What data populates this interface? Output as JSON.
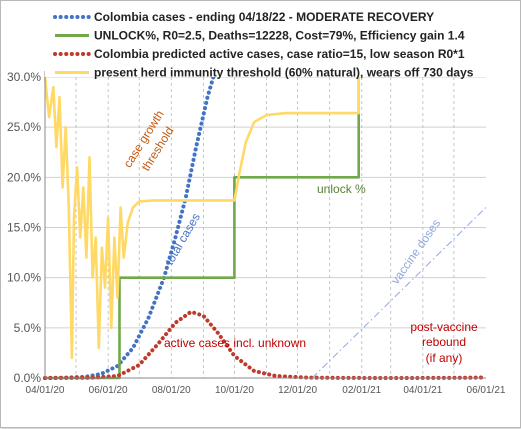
{
  "chart_data": {
    "type": "line",
    "x_axis": {
      "range": [
        "2020-04-01",
        "2021-06-01"
      ],
      "tick_labels": [
        "04/01/20",
        "06/01/20",
        "08/01/20",
        "10/01/20",
        "12/01/20",
        "02/01/21",
        "04/01/21",
        "06/01/21"
      ]
    },
    "y_axis": {
      "range": [
        0,
        0.3
      ],
      "tick_labels": [
        "0.0%",
        "5.0%",
        "10.0%",
        "15.0%",
        "20.0%",
        "25.0%",
        "30.0%"
      ]
    },
    "grid": {
      "horizontal": "solid",
      "vertical": "dashed"
    },
    "legend": {
      "position": "top",
      "entries": [
        {
          "label": "Colombia cases - ending 04/18/22 - MODERATE RECOVERY",
          "color": "#4472c4",
          "style": "dotted"
        },
        {
          "label": "UNLOCK%, R0=2.5,  Deaths=12228, Cost=79%, Efficiency gain 1.4",
          "color": "#70a84a",
          "style": "solid"
        },
        {
          "label": "Colombia predicted active cases, case ratio=15, low season R0*1",
          "color": "#c0392b",
          "style": "dotted"
        },
        {
          "label": "present herd immunity threshold (60% natural), wears off 730 days",
          "color": "#ffd966",
          "style": "solid"
        }
      ]
    },
    "annotations": [
      {
        "text": "case growth",
        "color": "#c55a11"
      },
      {
        "text": "threshold",
        "color": "#c55a11"
      },
      {
        "text": "total cases",
        "color": "#4472c4"
      },
      {
        "text": "unlock %",
        "color": "#548235"
      },
      {
        "text": "vaccine doses",
        "color": "#8ea9db"
      },
      {
        "text": "active cases incl. unknown",
        "color": "#c00000"
      },
      {
        "text": "post-vaccine",
        "color": "#c00000"
      },
      {
        "text": "rebound",
        "color": "#c00000"
      },
      {
        "text": "(if any)",
        "color": "#c00000"
      }
    ],
    "series": [
      {
        "name": "Colombia cases - ending 04/18/22 - MODERATE RECOVERY",
        "color": "#4472c4",
        "style": "dotted",
        "points": [
          [
            "2020-04-01",
            0
          ],
          [
            "2020-04-20",
            0.0003
          ],
          [
            "2020-05-10",
            0.0012
          ],
          [
            "2020-05-25",
            0.004
          ],
          [
            "2020-06-10",
            0.012
          ],
          [
            "2020-06-25",
            0.03
          ],
          [
            "2020-07-10",
            0.06
          ],
          [
            "2020-07-25",
            0.1
          ],
          [
            "2020-08-05",
            0.14
          ],
          [
            "2020-08-15",
            0.18
          ],
          [
            "2020-08-25",
            0.23
          ],
          [
            "2020-09-05",
            0.28
          ],
          [
            "2020-09-12",
            0.305
          ]
        ]
      },
      {
        "name": "UNLOCK%, R0=2.5,  Deaths=12228, Cost=79%, Efficiency gain 1.4",
        "color": "#70a84a",
        "style": "solid",
        "points": [
          [
            "2020-04-01",
            0
          ],
          [
            "2020-06-12",
            0
          ],
          [
            "2020-06-12",
            0.1
          ],
          [
            "2020-10-01",
            0.1
          ],
          [
            "2020-10-01",
            0.2
          ],
          [
            "2021-01-29",
            0.2
          ],
          [
            "2021-01-29",
            0.3
          ]
        ]
      },
      {
        "name": "Colombia predicted active cases, case ratio=15, low season R0*1",
        "color": "#c0392b",
        "style": "dotted",
        "points": [
          [
            "2020-04-01",
            0
          ],
          [
            "2020-05-15",
            0.0003
          ],
          [
            "2020-06-10",
            0.002
          ],
          [
            "2020-07-01",
            0.013
          ],
          [
            "2020-07-20",
            0.035
          ],
          [
            "2020-08-05",
            0.055
          ],
          [
            "2020-08-20",
            0.066
          ],
          [
            "2020-09-01",
            0.062
          ],
          [
            "2020-09-15",
            0.045
          ],
          [
            "2020-10-01",
            0.022
          ],
          [
            "2020-10-20",
            0.007
          ],
          [
            "2020-11-10",
            0.002
          ],
          [
            "2020-12-10",
            0.0004
          ],
          [
            "2021-01-15",
            0.0001
          ],
          [
            "2021-03-01",
            0
          ],
          [
            "2021-04-15",
            0.0001
          ],
          [
            "2021-05-15",
            0.0003
          ],
          [
            "2021-06-01",
            0.0005
          ]
        ]
      },
      {
        "name": "present herd immunity threshold (60% natural), wears off 730 days",
        "color": "#ffd966",
        "style": "solid",
        "points": [
          [
            "2020-04-01",
            0.3
          ],
          [
            "2020-04-05",
            0.26
          ],
          [
            "2020-04-09",
            0.29
          ],
          [
            "2020-04-12",
            0.23
          ],
          [
            "2020-04-15",
            0.28
          ],
          [
            "2020-04-18",
            0.19
          ],
          [
            "2020-04-21",
            0.25
          ],
          [
            "2020-04-24",
            0.17
          ],
          [
            "2020-04-27",
            0.02
          ],
          [
            "2020-04-29",
            0.16
          ],
          [
            "2020-05-02",
            0.21
          ],
          [
            "2020-05-05",
            0.14
          ],
          [
            "2020-05-08",
            0.19
          ],
          [
            "2020-05-11",
            0.12
          ],
          [
            "2020-05-14",
            0.22
          ],
          [
            "2020-05-17",
            0.1
          ],
          [
            "2020-05-20",
            0.14
          ],
          [
            "2020-05-23",
            0.03
          ],
          [
            "2020-05-26",
            0.13
          ],
          [
            "2020-05-29",
            0.09
          ],
          [
            "2020-06-01",
            0.16
          ],
          [
            "2020-06-04",
            0.05
          ],
          [
            "2020-06-07",
            0.14
          ],
          [
            "2020-06-10",
            0.08
          ],
          [
            "2020-06-13",
            0.17
          ],
          [
            "2020-06-16",
            0.12
          ],
          [
            "2020-06-20",
            0.155
          ],
          [
            "2020-06-25",
            0.17
          ],
          [
            "2020-07-01",
            0.176
          ],
          [
            "2020-07-15",
            0.177
          ],
          [
            "2020-08-15",
            0.177
          ],
          [
            "2020-10-01",
            0.177
          ],
          [
            "2020-10-06",
            0.205
          ],
          [
            "2020-10-12",
            0.235
          ],
          [
            "2020-10-20",
            0.255
          ],
          [
            "2020-11-01",
            0.262
          ],
          [
            "2020-11-20",
            0.264
          ],
          [
            "2021-01-29",
            0.264
          ],
          [
            "2021-01-29",
            0.3
          ]
        ]
      },
      {
        "name": "vaccine doses",
        "color": "#8ea9db",
        "style": "dashdot",
        "points": [
          [
            "2020-12-15",
            0
          ],
          [
            "2021-06-01",
            0.17
          ]
        ]
      }
    ]
  }
}
